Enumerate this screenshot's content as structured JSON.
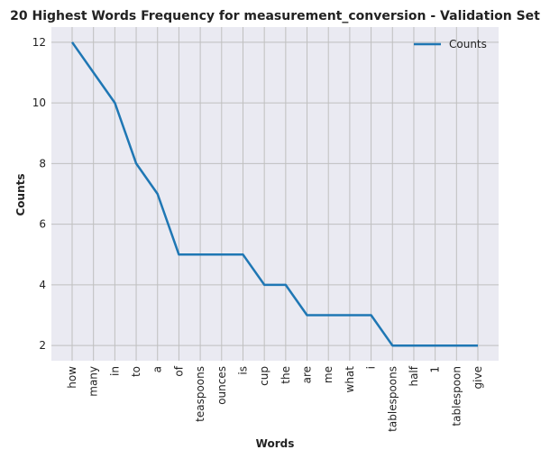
{
  "chart_data": {
    "type": "line",
    "title": "20 Highest Words Frequency for measurement_conversion - Validation Set",
    "xlabel": "Words",
    "ylabel": "Counts",
    "categories": [
      "how",
      "many",
      "in",
      "to",
      "a",
      "of",
      "teaspoons",
      "ounces",
      "is",
      "cup",
      "the",
      "are",
      "me",
      "what",
      "i",
      "tablespoons",
      "half",
      "1",
      "tablespoon",
      "give"
    ],
    "series": [
      {
        "name": "Counts",
        "values": [
          12,
          11,
          10,
          8,
          7,
          5,
          5,
          5,
          5,
          4,
          4,
          3,
          3,
          3,
          3,
          2,
          2,
          2,
          2,
          2
        ],
        "color": "#1f77b4"
      }
    ],
    "ylim": [
      1.5,
      12.5
    ],
    "yticks": [
      2,
      4,
      6,
      8,
      10,
      12
    ],
    "grid": true,
    "legend": "top-right",
    "background": "#eaeaf2",
    "grid_color": "#bfbfbf"
  }
}
